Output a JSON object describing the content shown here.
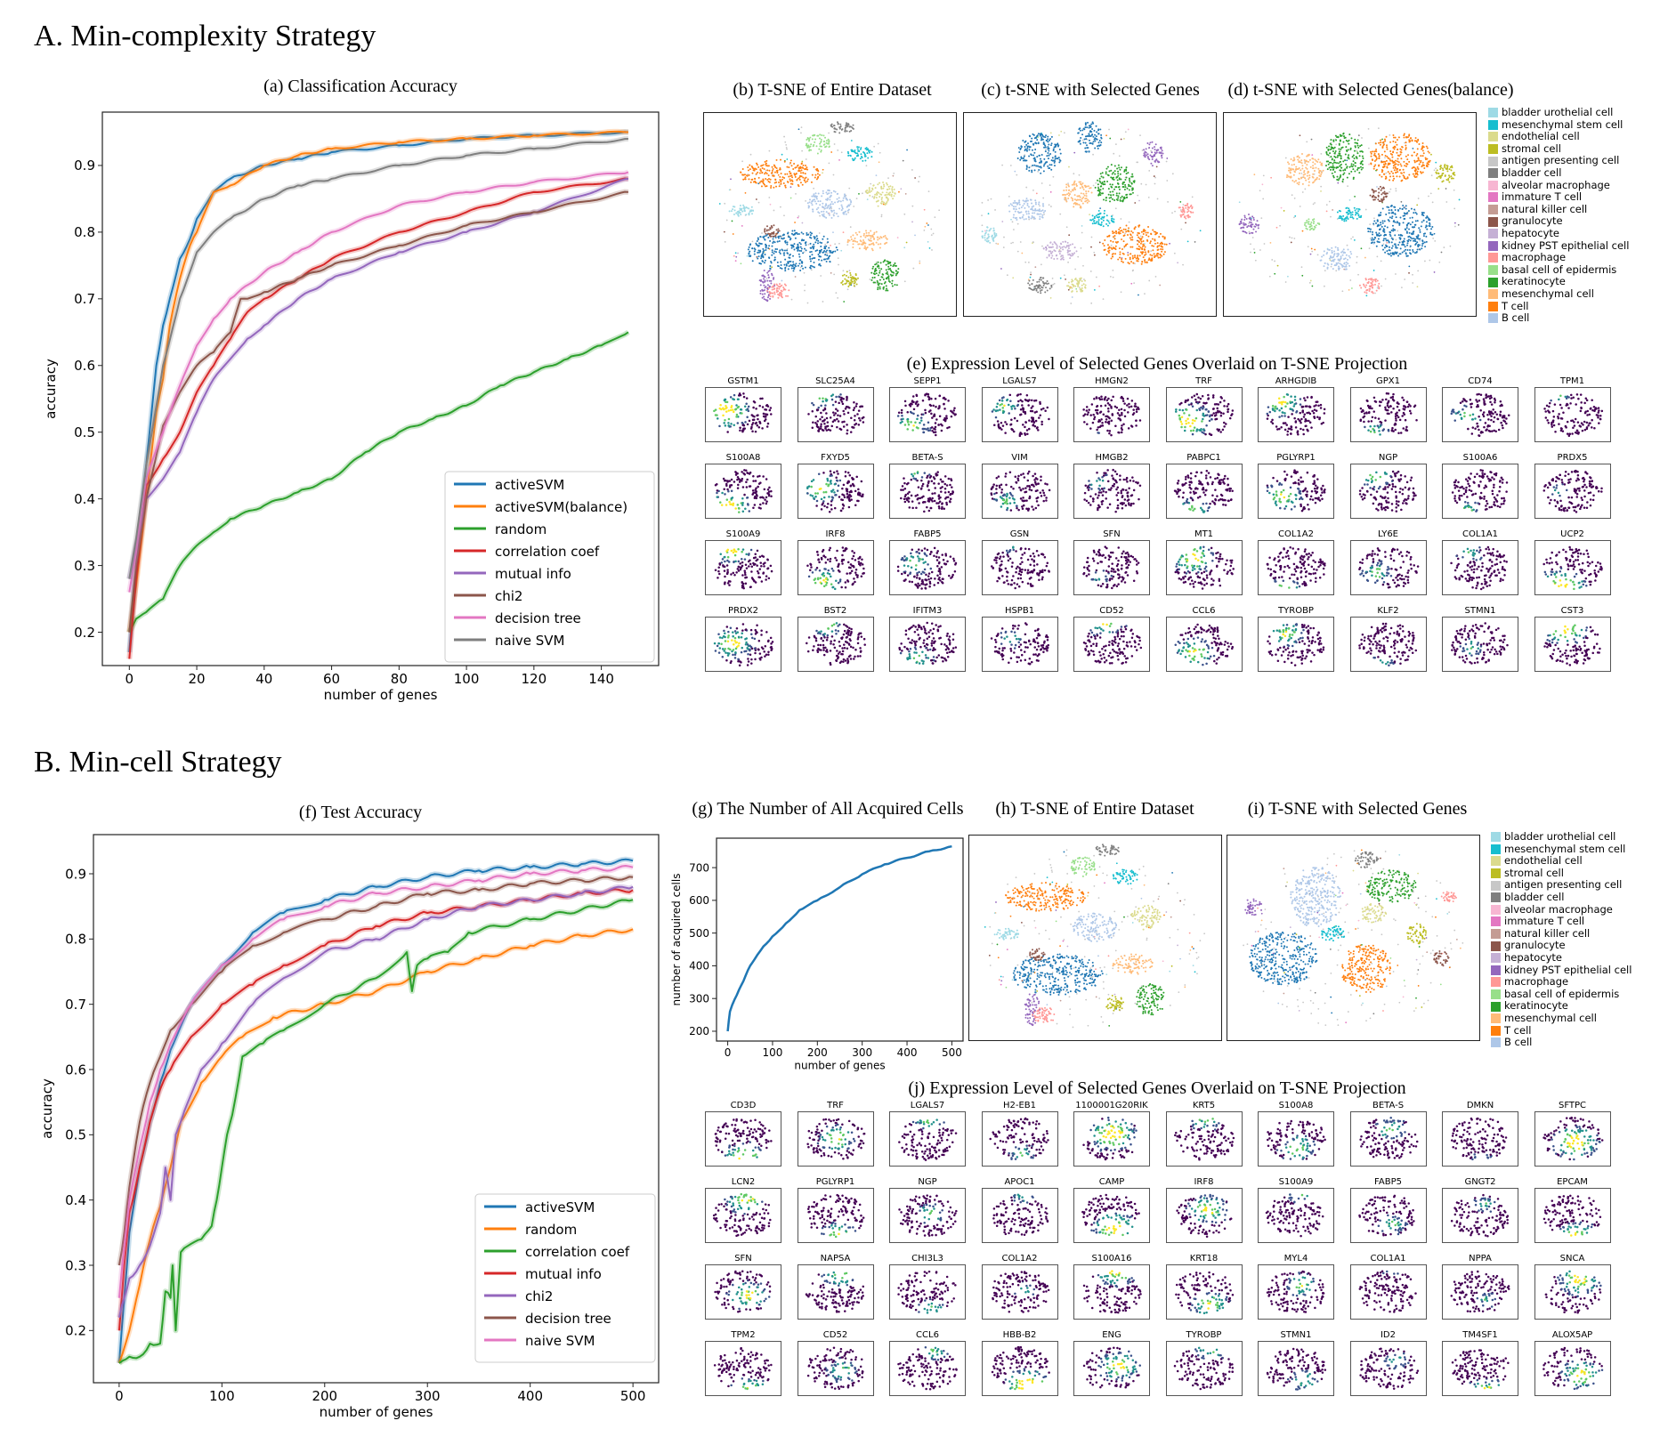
{
  "sections": {
    "a": "A. Min-complexity  Strategy",
    "b": "B. Min-cell Strategy"
  },
  "panels": {
    "a_title": "(a) Classification Accuracy",
    "b_title": "(b) T-SNE of Entire Dataset",
    "c_title": "(c) t-SNE with Selected Genes",
    "d_title": "(d) t-SNE with Selected Genes(balance)",
    "e_title": "(e) Expression Level of Selected Genes Overlaid on T-SNE Projection",
    "f_title": "(f) Test Accuracy",
    "g_title": "(g) The Number of All Acquired Cells",
    "h_title": "(h) T-SNE of Entire Dataset",
    "i_title": "(i) T-SNE with Selected Genes",
    "j_title": "(j) Expression Level of Selected Genes Overlaid on T-SNE Projection"
  },
  "cell_type_legend": [
    {
      "label": "bladder urothelial cell",
      "color": "#9edae5"
    },
    {
      "label": "mesenchymal stem cell",
      "color": "#17becf"
    },
    {
      "label": "endothelial cell",
      "color": "#dbdb8d"
    },
    {
      "label": "stromal cell",
      "color": "#bcbd22"
    },
    {
      "label": "antigen presenting cell",
      "color": "#c7c7c7"
    },
    {
      "label": "bladder cell",
      "color": "#7f7f7f"
    },
    {
      "label": "alveolar macrophage",
      "color": "#f7b6d2"
    },
    {
      "label": "immature T cell",
      "color": "#e377c2"
    },
    {
      "label": "natural killer cell",
      "color": "#c49c94"
    },
    {
      "label": "granulocyte",
      "color": "#8c564b"
    },
    {
      "label": "hepatocyte",
      "color": "#c5b0d5"
    },
    {
      "label": "kidney PST epithelial cell",
      "color": "#9467bd"
    },
    {
      "label": "macrophage",
      "color": "#ff9896"
    },
    {
      "label": "basal cell of epidermis",
      "color": "#98df8a"
    },
    {
      "label": "keratinocyte",
      "color": "#2ca02c"
    },
    {
      "label": "mesenchymal cell",
      "color": "#ffbb78"
    },
    {
      "label": "T cell",
      "color": "#ff7f0e"
    },
    {
      "label": "B cell",
      "color": "#aec7e8"
    }
  ],
  "cell_type_legend_last_color": "#1f77b4",
  "genes_e": [
    "GSTM1",
    "SLC25A4",
    "SEPP1",
    "LGALS7",
    "HMGN2",
    "TRF",
    "ARHGDIB",
    "GPX1",
    "CD74",
    "TPM1",
    "S100A8",
    "FXYD5",
    "BETA-S",
    "VIM",
    "HMGB2",
    "PABPC1",
    "PGLYRP1",
    "NGP",
    "S100A6",
    "PRDX5",
    "S100A9",
    "IRF8",
    "FABP5",
    "GSN",
    "SFN",
    "MT1",
    "COL1A2",
    "LY6E",
    "COL1A1",
    "UCP2",
    "PRDX2",
    "BST2",
    "IFITM3",
    "HSPB1",
    "CD52",
    "CCL6",
    "TYROBP",
    "KLF2",
    "STMN1",
    "CST3"
  ],
  "genes_j": [
    "CD3D",
    "TRF",
    "LGALS7",
    "H2-EB1",
    "1100001G20RIK",
    "KRT5",
    "S100A8",
    "BETA-S",
    "DMKN",
    "SFTPC",
    "LCN2",
    "PGLYRP1",
    "NGP",
    "APOC1",
    "CAMP",
    "IRF8",
    "S100A9",
    "FABP5",
    "GNGT2",
    "EPCAM",
    "SFN",
    "NAPSA",
    "CHI3L3",
    "COL1A2",
    "S100A16",
    "KRT18",
    "MYL4",
    "COL1A1",
    "NPPA",
    "SNCA",
    "TPM2",
    "CD52",
    "CCL6",
    "HBB-B2",
    "ENG",
    "TYROBP",
    "STMN1",
    "ID2",
    "TM4SF1",
    "ALOX5AP"
  ],
  "chart_data": [
    {
      "id": "a",
      "type": "line",
      "title": "(a) Classification Accuracy",
      "xlabel": "number of genes",
      "ylabel": "accuracy",
      "xlim": [
        -8,
        157
      ],
      "ylim": [
        0.15,
        0.98
      ],
      "xticks": [
        0,
        20,
        40,
        60,
        80,
        100,
        120,
        140
      ],
      "yticks": [
        0.2,
        0.3,
        0.4,
        0.5,
        0.6,
        0.7,
        0.8,
        0.9
      ],
      "legend_position": "lower-right",
      "series": [
        {
          "name": "activeSVM",
          "color": "#1f77b4",
          "x": [
            0,
            2,
            5,
            8,
            10,
            12,
            15,
            18,
            20,
            25,
            30,
            40,
            50,
            60,
            80,
            100,
            120,
            148
          ],
          "y": [
            0.17,
            0.3,
            0.45,
            0.6,
            0.66,
            0.7,
            0.76,
            0.79,
            0.82,
            0.86,
            0.88,
            0.9,
            0.91,
            0.92,
            0.93,
            0.94,
            0.945,
            0.95
          ]
        },
        {
          "name": "activeSVM(balance)",
          "color": "#ff7f0e",
          "x": [
            0,
            2,
            5,
            8,
            10,
            12,
            15,
            18,
            20,
            25,
            30,
            40,
            50,
            60,
            80,
            100,
            120,
            148
          ],
          "y": [
            0.2,
            0.27,
            0.4,
            0.53,
            0.58,
            0.66,
            0.73,
            0.78,
            0.8,
            0.86,
            0.87,
            0.9,
            0.915,
            0.925,
            0.935,
            0.94,
            0.945,
            0.95
          ]
        },
        {
          "name": "random",
          "color": "#2ca02c",
          "x": [
            0,
            2,
            5,
            10,
            15,
            20,
            25,
            30,
            40,
            50,
            60,
            70,
            80,
            90,
            100,
            110,
            120,
            130,
            140,
            148
          ],
          "y": [
            0.2,
            0.22,
            0.23,
            0.25,
            0.3,
            0.33,
            0.35,
            0.37,
            0.39,
            0.41,
            0.43,
            0.47,
            0.5,
            0.52,
            0.54,
            0.57,
            0.59,
            0.61,
            0.63,
            0.65
          ]
        },
        {
          "name": "correlation coef",
          "color": "#d62728",
          "x": [
            0,
            2,
            5,
            10,
            15,
            20,
            25,
            30,
            35,
            40,
            50,
            60,
            80,
            100,
            120,
            148
          ],
          "y": [
            0.16,
            0.28,
            0.42,
            0.46,
            0.5,
            0.56,
            0.6,
            0.64,
            0.68,
            0.7,
            0.73,
            0.76,
            0.8,
            0.83,
            0.86,
            0.88
          ]
        },
        {
          "name": "mutual info",
          "color": "#9467bd",
          "x": [
            0,
            2,
            5,
            10,
            15,
            20,
            25,
            30,
            35,
            40,
            50,
            60,
            80,
            100,
            120,
            148
          ],
          "y": [
            0.28,
            0.33,
            0.4,
            0.43,
            0.47,
            0.53,
            0.58,
            0.61,
            0.64,
            0.66,
            0.7,
            0.73,
            0.77,
            0.8,
            0.83,
            0.88
          ]
        },
        {
          "name": "chi2",
          "color": "#8c564b",
          "x": [
            0,
            2,
            5,
            10,
            15,
            20,
            25,
            30,
            33,
            35,
            40,
            50,
            60,
            80,
            100,
            120,
            148
          ],
          "y": [
            0.2,
            0.3,
            0.4,
            0.51,
            0.56,
            0.6,
            0.62,
            0.65,
            0.7,
            0.7,
            0.71,
            0.73,
            0.75,
            0.78,
            0.81,
            0.83,
            0.86
          ]
        },
        {
          "name": "decision tree",
          "color": "#e377c2",
          "x": [
            0,
            2,
            5,
            10,
            15,
            20,
            25,
            30,
            40,
            50,
            60,
            80,
            100,
            120,
            148
          ],
          "y": [
            0.26,
            0.32,
            0.43,
            0.5,
            0.57,
            0.63,
            0.67,
            0.7,
            0.74,
            0.77,
            0.8,
            0.84,
            0.86,
            0.875,
            0.89
          ]
        },
        {
          "name": "naive SVM",
          "color": "#7f7f7f",
          "x": [
            0,
            2,
            5,
            10,
            15,
            20,
            25,
            30,
            40,
            50,
            60,
            80,
            100,
            120,
            148
          ],
          "y": [
            0.28,
            0.34,
            0.45,
            0.6,
            0.7,
            0.77,
            0.8,
            0.82,
            0.85,
            0.87,
            0.88,
            0.9,
            0.915,
            0.925,
            0.94
          ]
        }
      ]
    },
    {
      "id": "f",
      "type": "line",
      "title": "(f) Test Accuracy",
      "xlabel": "number of genes",
      "ylabel": "accuracy",
      "xlim": [
        -25,
        525
      ],
      "ylim": [
        0.12,
        0.96
      ],
      "xticks": [
        0,
        100,
        200,
        300,
        400,
        500
      ],
      "yticks": [
        0.2,
        0.3,
        0.4,
        0.5,
        0.6,
        0.7,
        0.8,
        0.9
      ],
      "legend_position": "lower-right",
      "series": [
        {
          "name": "activeSVM",
          "color": "#1f77b4",
          "x": [
            0,
            5,
            10,
            20,
            30,
            40,
            50,
            70,
            100,
            130,
            160,
            200,
            250,
            300,
            350,
            400,
            450,
            500
          ],
          "y": [
            0.15,
            0.25,
            0.35,
            0.45,
            0.52,
            0.58,
            0.63,
            0.7,
            0.76,
            0.81,
            0.84,
            0.86,
            0.88,
            0.895,
            0.905,
            0.91,
            0.915,
            0.92
          ]
        },
        {
          "name": "random",
          "color": "#ff7f0e",
          "x": [
            0,
            10,
            20,
            30,
            40,
            50,
            60,
            80,
            100,
            120,
            150,
            200,
            250,
            300,
            350,
            400,
            450,
            500
          ],
          "y": [
            0.15,
            0.2,
            0.27,
            0.34,
            0.39,
            0.45,
            0.52,
            0.58,
            0.62,
            0.65,
            0.68,
            0.7,
            0.72,
            0.75,
            0.77,
            0.79,
            0.805,
            0.815
          ]
        },
        {
          "name": "correlation coef",
          "color": "#2ca02c",
          "x": [
            0,
            10,
            20,
            30,
            40,
            45,
            50,
            52,
            55,
            60,
            80,
            90,
            95,
            100,
            105,
            110,
            120,
            140,
            160,
            200,
            250,
            280,
            285,
            290,
            300,
            320,
            340,
            400,
            450,
            500
          ],
          "y": [
            0.15,
            0.16,
            0.16,
            0.18,
            0.18,
            0.26,
            0.25,
            0.3,
            0.2,
            0.32,
            0.34,
            0.36,
            0.4,
            0.45,
            0.5,
            0.53,
            0.62,
            0.64,
            0.66,
            0.7,
            0.74,
            0.78,
            0.72,
            0.76,
            0.77,
            0.78,
            0.81,
            0.83,
            0.845,
            0.86
          ]
        },
        {
          "name": "mutual info",
          "color": "#d62728",
          "x": [
            0,
            5,
            10,
            20,
            30,
            40,
            50,
            70,
            100,
            130,
            160,
            200,
            250,
            300,
            350,
            400,
            450,
            500
          ],
          "y": [
            0.2,
            0.3,
            0.38,
            0.45,
            0.52,
            0.57,
            0.6,
            0.65,
            0.7,
            0.73,
            0.76,
            0.79,
            0.82,
            0.84,
            0.85,
            0.86,
            0.87,
            0.875
          ]
        },
        {
          "name": "chi2",
          "color": "#9467bd",
          "x": [
            0,
            5,
            10,
            20,
            30,
            40,
            45,
            50,
            55,
            60,
            80,
            100,
            130,
            160,
            200,
            250,
            300,
            350,
            400,
            450,
            500
          ],
          "y": [
            0.22,
            0.25,
            0.28,
            0.3,
            0.33,
            0.38,
            0.45,
            0.4,
            0.5,
            0.52,
            0.6,
            0.64,
            0.7,
            0.74,
            0.78,
            0.8,
            0.83,
            0.85,
            0.86,
            0.87,
            0.88
          ]
        },
        {
          "name": "decision tree",
          "color": "#8c564b",
          "x": [
            0,
            5,
            10,
            20,
            30,
            40,
            50,
            70,
            100,
            130,
            160,
            200,
            250,
            300,
            350,
            400,
            450,
            500
          ],
          "y": [
            0.3,
            0.35,
            0.42,
            0.52,
            0.58,
            0.62,
            0.66,
            0.7,
            0.75,
            0.79,
            0.81,
            0.83,
            0.85,
            0.87,
            0.875,
            0.885,
            0.89,
            0.895
          ]
        },
        {
          "name": "naive SVM",
          "color": "#e377c2",
          "x": [
            0,
            5,
            10,
            20,
            30,
            40,
            50,
            70,
            100,
            130,
            160,
            200,
            250,
            300,
            350,
            400,
            450,
            500
          ],
          "y": [
            0.25,
            0.33,
            0.4,
            0.48,
            0.55,
            0.6,
            0.64,
            0.7,
            0.76,
            0.8,
            0.83,
            0.85,
            0.87,
            0.88,
            0.89,
            0.9,
            0.905,
            0.91
          ]
        }
      ]
    },
    {
      "id": "g",
      "type": "line",
      "title": "(g) The Number of All Acquired Cells",
      "xlabel": "number of genes",
      "ylabel": "number of acquired cells",
      "xlim": [
        -25,
        525
      ],
      "ylim": [
        170,
        790
      ],
      "xticks": [
        0,
        100,
        200,
        300,
        400,
        500
      ],
      "yticks": [
        200,
        300,
        400,
        500,
        600,
        700
      ],
      "series": [
        {
          "name": "acquired cells",
          "color": "#1f77b4",
          "x": [
            0,
            5,
            10,
            20,
            30,
            40,
            50,
            60,
            80,
            100,
            130,
            160,
            200,
            250,
            300,
            350,
            400,
            450,
            500
          ],
          "y": [
            200,
            260,
            280,
            310,
            340,
            370,
            400,
            420,
            460,
            490,
            530,
            570,
            600,
            640,
            680,
            710,
            730,
            750,
            765
          ]
        }
      ]
    }
  ]
}
